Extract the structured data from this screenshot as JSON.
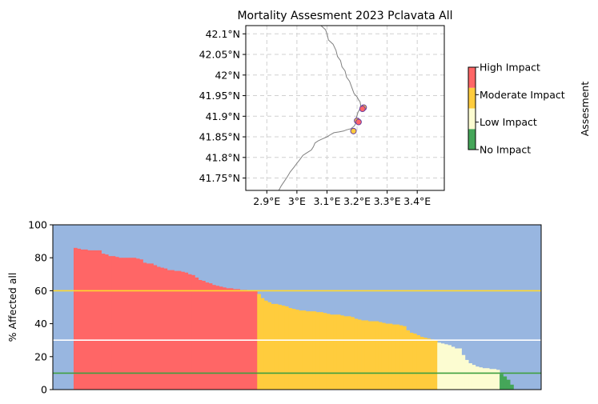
{
  "title": "Mortality Assesment 2023 Pclavata All",
  "colors": {
    "high": "#ff6666",
    "moderate": "#ffcc3d",
    "low": "#fcfcd1",
    "none": "#45a659",
    "sky": "#98b6e0",
    "coast": "#808080",
    "grid": "#d0d0d0",
    "line_high": "#ffd92f",
    "line_moderate": "#ffffff",
    "line_low": "#3f9f3f",
    "marker_edge": "#6a3fa0"
  },
  "chart_data": [
    {
      "type": "scatter",
      "name": "map",
      "title": "Mortality Assesment 2023 Pclavata All",
      "xlim": [
        2.83,
        3.49
      ],
      "ylim": [
        41.72,
        42.12
      ],
      "xticks": [
        2.9,
        3.0,
        3.1,
        3.2,
        3.3,
        3.4
      ],
      "xtick_labels": [
        "2.9°E",
        "3°E",
        "3.1°E",
        "3.2°E",
        "3.3°E",
        "3.4°E"
      ],
      "yticks": [
        41.75,
        41.8,
        41.85,
        41.9,
        41.95,
        42.0,
        42.05,
        42.1
      ],
      "ytick_labels": [
        "41.75°N",
        "41.8°N",
        "41.85°N",
        "41.9°N",
        "41.95°N",
        "42°N",
        "42.05°N",
        "42.1°N"
      ],
      "grid": true,
      "coastline": [
        [
          3.08,
          42.12
        ],
        [
          3.095,
          42.11
        ],
        [
          3.1,
          42.1
        ],
        [
          3.105,
          42.085
        ],
        [
          3.12,
          42.075
        ],
        [
          3.13,
          42.06
        ],
        [
          3.135,
          42.045
        ],
        [
          3.145,
          42.035
        ],
        [
          3.15,
          42.02
        ],
        [
          3.16,
          42.01
        ],
        [
          3.165,
          41.995
        ],
        [
          3.175,
          41.985
        ],
        [
          3.18,
          41.975
        ],
        [
          3.185,
          41.965
        ],
        [
          3.19,
          41.955
        ],
        [
          3.2,
          41.947
        ],
        [
          3.205,
          41.94
        ],
        [
          3.21,
          41.935
        ],
        [
          3.212,
          41.927
        ],
        [
          3.21,
          41.918
        ],
        [
          3.203,
          41.91
        ],
        [
          3.2,
          41.902
        ],
        [
          3.196,
          41.893
        ],
        [
          3.198,
          41.885
        ],
        [
          3.19,
          41.876
        ],
        [
          3.18,
          41.87
        ],
        [
          3.165,
          41.867
        ],
        [
          3.155,
          41.864
        ],
        [
          3.14,
          41.862
        ],
        [
          3.123,
          41.86
        ],
        [
          3.113,
          41.856
        ],
        [
          3.1,
          41.85
        ],
        [
          3.085,
          41.845
        ],
        [
          3.07,
          41.84
        ],
        [
          3.06,
          41.835
        ],
        [
          3.055,
          41.826
        ],
        [
          3.048,
          41.818
        ],
        [
          3.035,
          41.812
        ],
        [
          3.02,
          41.805
        ],
        [
          3.01,
          41.795
        ],
        [
          3.0,
          41.786
        ],
        [
          2.99,
          41.776
        ],
        [
          2.978,
          41.765
        ],
        [
          2.968,
          41.753
        ],
        [
          2.958,
          41.742
        ],
        [
          2.948,
          41.731
        ],
        [
          2.94,
          41.72
        ]
      ],
      "points": [
        {
          "lon": 3.222,
          "lat": 41.921,
          "level": "moderate"
        },
        {
          "lon": 3.218,
          "lat": 41.918,
          "level": "high"
        },
        {
          "lon": 3.2,
          "lat": 41.889,
          "level": "moderate"
        },
        {
          "lon": 3.205,
          "lat": 41.886,
          "level": "high"
        },
        {
          "lon": 3.188,
          "lat": 41.864,
          "level": "moderate"
        }
      ]
    },
    {
      "type": "colorbar",
      "name": "assessment-colorbar",
      "label": "Assesment",
      "levels": [
        {
          "key": "none",
          "label": "No Impact"
        },
        {
          "key": "low",
          "label": "Low Impact"
        },
        {
          "key": "moderate",
          "label": "Moderate Impact"
        },
        {
          "key": "high",
          "label": "High Impact"
        }
      ]
    },
    {
      "type": "bar",
      "name": "affected-bars",
      "xlabel": "",
      "ylabel": "% Affected all",
      "ylim": [
        0,
        100
      ],
      "yticks": [
        0,
        20,
        40,
        60,
        80,
        100
      ],
      "bar_start": 6,
      "n_slots": 141,
      "thresholds": [
        {
          "key": "high",
          "value": 60
        },
        {
          "key": "moderate",
          "value": 30
        },
        {
          "key": "low",
          "value": 10
        }
      ],
      "values": [
        86,
        85.5,
        85,
        85,
        84.5,
        84.5,
        84.5,
        84.5,
        82.5,
        82,
        81,
        81,
        80.5,
        80,
        80,
        80,
        80,
        80,
        79.5,
        79,
        77,
        76.5,
        76.5,
        75.5,
        74.5,
        74,
        73.5,
        72.5,
        72.5,
        72,
        72,
        71.5,
        71,
        70,
        69.5,
        68,
        66.5,
        66,
        65,
        64.5,
        63.5,
        63,
        62.5,
        62,
        61.5,
        61.5,
        61,
        61,
        60.5,
        60.5,
        60,
        60,
        60,
        58,
        55.5,
        54,
        53,
        52,
        52,
        51.5,
        51,
        50.5,
        49.5,
        49,
        48.5,
        48,
        48,
        47.5,
        47.5,
        47.5,
        47,
        47,
        46.5,
        46,
        45.5,
        45.5,
        45.5,
        45,
        44.5,
        44.5,
        44,
        43,
        42.5,
        42,
        42,
        41.5,
        41.5,
        41.5,
        41,
        40.5,
        40,
        40,
        39.5,
        39.5,
        39,
        38.5,
        36,
        34.5,
        34,
        33,
        32,
        31.5,
        31,
        30.5,
        30,
        28.5,
        28,
        27.5,
        27,
        26,
        25,
        25,
        21,
        18,
        16,
        15,
        14,
        13.5,
        13,
        13,
        12.5,
        12.5,
        12,
        9.5,
        8,
        6,
        3
      ]
    }
  ]
}
